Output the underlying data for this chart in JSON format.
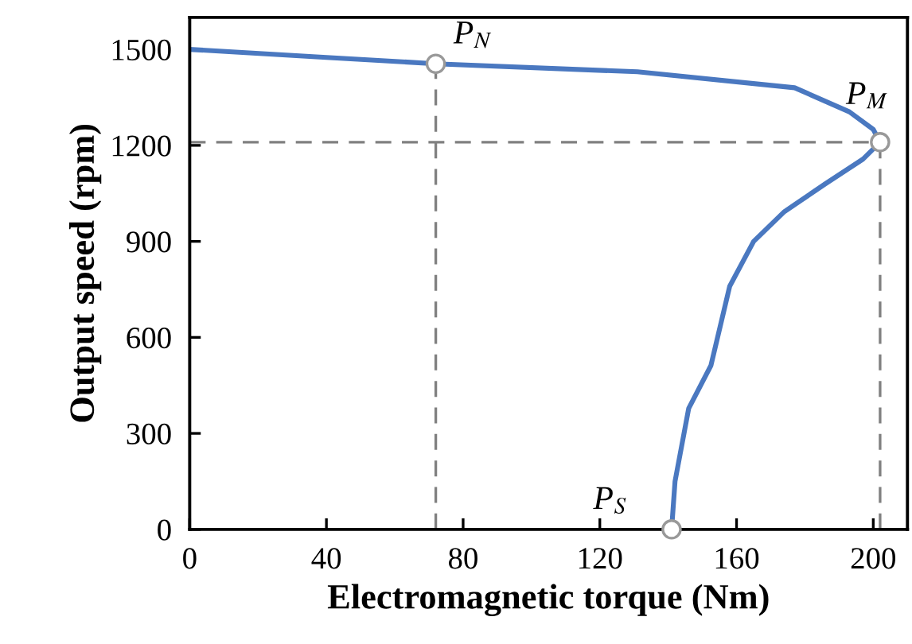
{
  "chart_data": {
    "type": "line",
    "xlabel": "Electromagnetic torque (Nm)",
    "ylabel": "Output speed (rpm)",
    "series": [
      {
        "color": "#4a78c0",
        "x": [
          0,
          40,
          72,
          131,
          177,
          193,
          200,
          202,
          197,
          186,
          174,
          165,
          158,
          152.5,
          146,
          142,
          141
        ],
        "values": [
          1500,
          1475,
          1455,
          1430,
          1380,
          1305,
          1250,
          1210,
          1157,
          1080,
          993,
          900,
          760,
          512,
          378,
          150,
          0
        ]
      }
    ],
    "xlim": [
      0,
      210
    ],
    "xticks": [
      0,
      40,
      80,
      120,
      160,
      200
    ],
    "ylim": [
      0,
      1600
    ],
    "yticks": [
      0,
      300,
      600,
      900,
      1200,
      1500
    ],
    "grid": false,
    "legend": false,
    "marker": "none",
    "line_style": "solid",
    "ref_lines": [
      {
        "axis": "x",
        "value": 72,
        "color": "#808080",
        "line_style": "dashed"
      },
      {
        "axis": "y",
        "value": 1210,
        "color": "#808080",
        "line_style": "dashed"
      },
      {
        "axis": "x",
        "value": 202,
        "color": "#808080",
        "line_style": "dashed"
      }
    ],
    "annotations": [
      {
        "text": "P$_{N}$",
        "x": 72,
        "y": 1455
      },
      {
        "text": "P$_{M}$",
        "x": 202,
        "y": 1210
      },
      {
        "text": "P$_{S}$",
        "x": 141,
        "y": 0
      }
    ]
  }
}
